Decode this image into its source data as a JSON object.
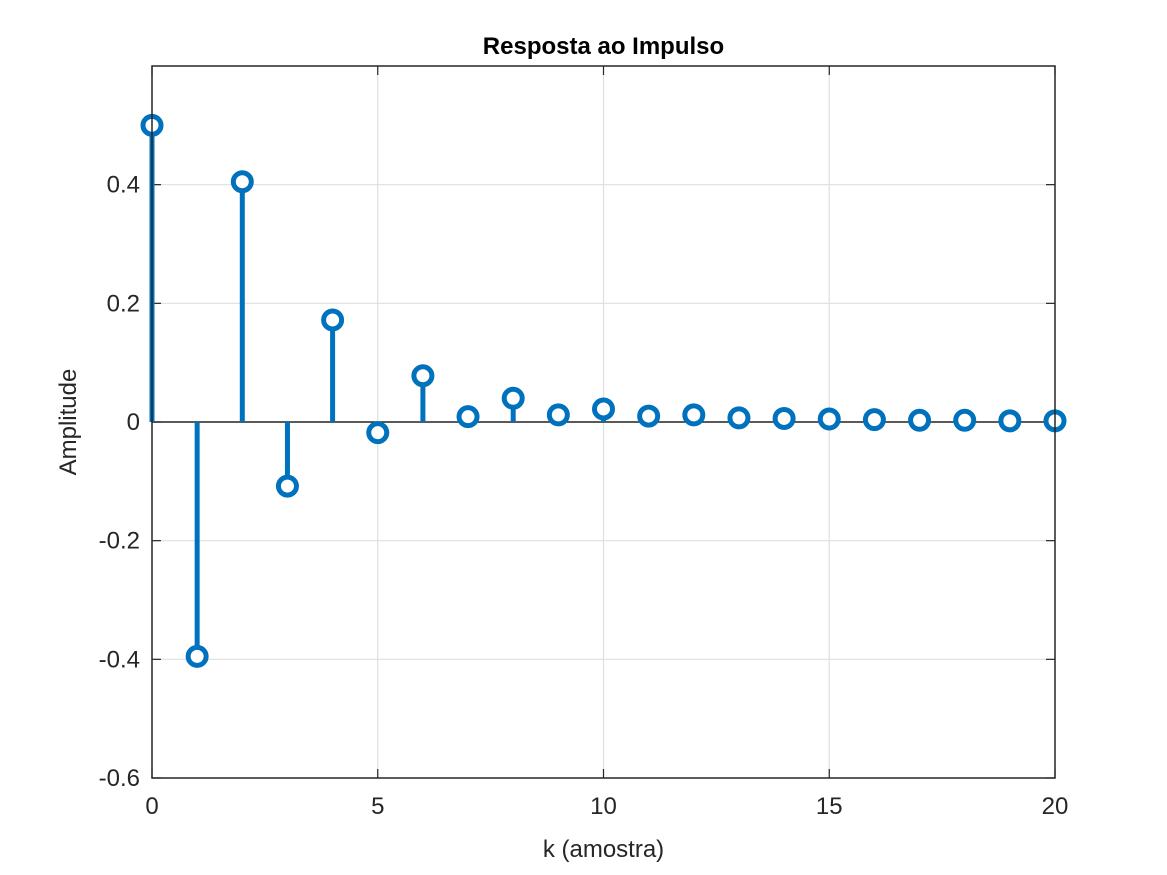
{
  "chart_data": {
    "type": "stem",
    "title": "Resposta ao Impulso",
    "xlabel": "k (amostra)",
    "ylabel": "Amplitude",
    "xlim": [
      0,
      20
    ],
    "ylim": [
      -0.6,
      0.6
    ],
    "xticks": [
      0,
      5,
      10,
      15,
      20
    ],
    "xtick_labels": [
      "0",
      "5",
      "10",
      "15",
      "20"
    ],
    "yticks": [
      -0.6,
      -0.4,
      -0.2,
      0,
      0.2,
      0.4
    ],
    "ytick_labels": [
      "-0.6",
      "-0.4",
      "-0.2",
      "0",
      "0.2",
      "0.4"
    ],
    "grid": true,
    "color": "#0072BD",
    "series": [
      {
        "x": [
          0,
          1,
          2,
          3,
          4,
          5,
          6,
          7,
          8,
          9,
          10,
          11,
          12,
          13,
          14,
          15,
          16,
          17,
          18,
          19,
          20
        ],
        "values": [
          0.5,
          -0.395,
          0.405,
          -0.108,
          0.172,
          -0.018,
          0.078,
          0.009,
          0.04,
          0.012,
          0.022,
          0.01,
          0.012,
          0.007,
          0.006,
          0.005,
          0.004,
          0.003,
          0.003,
          0.002,
          0.002
        ]
      }
    ]
  }
}
